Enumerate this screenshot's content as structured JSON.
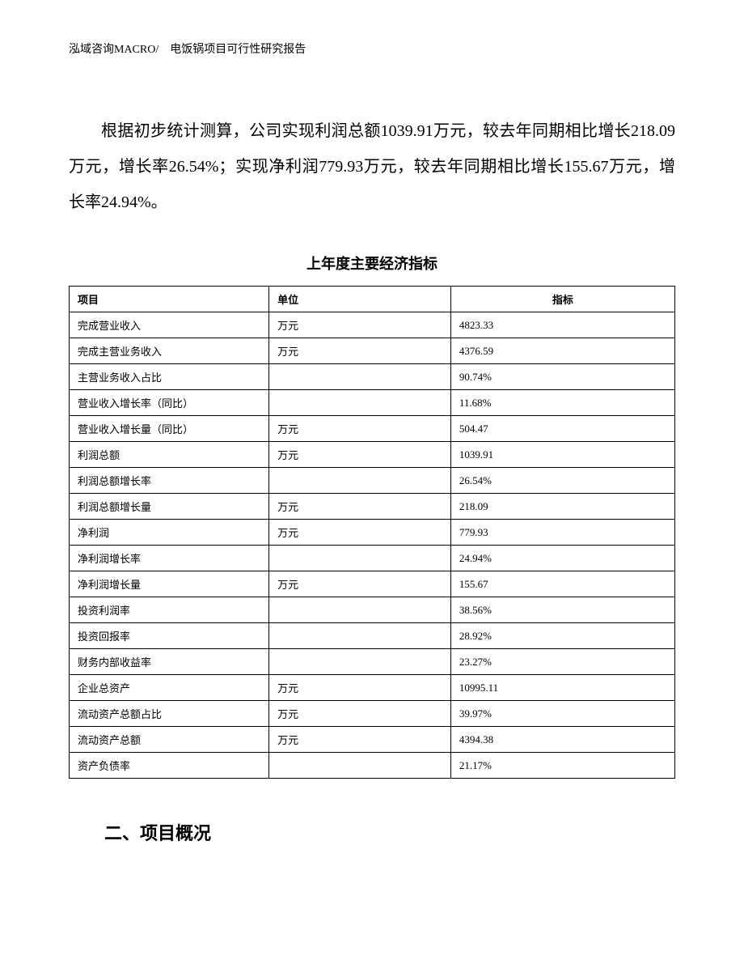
{
  "header": {
    "text": "泓域咨询MACRO/　电饭锅项目可行性研究报告"
  },
  "paragraph": {
    "text": "根据初步统计测算，公司实现利润总额1039.91万元，较去年同期相比增长218.09万元，增长率26.54%；实现净利润779.93万元，较去年同期相比增长155.67万元，增长率24.94%。"
  },
  "table": {
    "title": "上年度主要经济指标",
    "columns": {
      "item": "项目",
      "unit": "单位",
      "value": "指标"
    },
    "rows": [
      {
        "item": "完成营业收入",
        "unit": "万元",
        "value": "4823.33"
      },
      {
        "item": "完成主营业务收入",
        "unit": "万元",
        "value": "4376.59"
      },
      {
        "item": "主营业务收入占比",
        "unit": "",
        "value": "90.74%"
      },
      {
        "item": "营业收入增长率（同比）",
        "unit": "",
        "value": "11.68%"
      },
      {
        "item": "营业收入增长量（同比）",
        "unit": "万元",
        "value": "504.47"
      },
      {
        "item": "利润总额",
        "unit": "万元",
        "value": "1039.91"
      },
      {
        "item": "利润总额增长率",
        "unit": "",
        "value": "26.54%"
      },
      {
        "item": "利润总额增长量",
        "unit": "万元",
        "value": "218.09"
      },
      {
        "item": "净利润",
        "unit": "万元",
        "value": "779.93"
      },
      {
        "item": "净利润增长率",
        "unit": "",
        "value": "24.94%"
      },
      {
        "item": "净利润增长量",
        "unit": "万元",
        "value": "155.67"
      },
      {
        "item": "投资利润率",
        "unit": "",
        "value": "38.56%"
      },
      {
        "item": "投资回报率",
        "unit": "",
        "value": "28.92%"
      },
      {
        "item": "财务内部收益率",
        "unit": "",
        "value": "23.27%"
      },
      {
        "item": "企业总资产",
        "unit": "万元",
        "value": "10995.11"
      },
      {
        "item": "流动资产总额占比",
        "unit": "万元",
        "value": "39.97%"
      },
      {
        "item": "流动资产总额",
        "unit": "万元",
        "value": "4394.38"
      },
      {
        "item": "资产负债率",
        "unit": "",
        "value": "21.17%"
      }
    ]
  },
  "section_heading": {
    "text": "二、项目概况"
  }
}
